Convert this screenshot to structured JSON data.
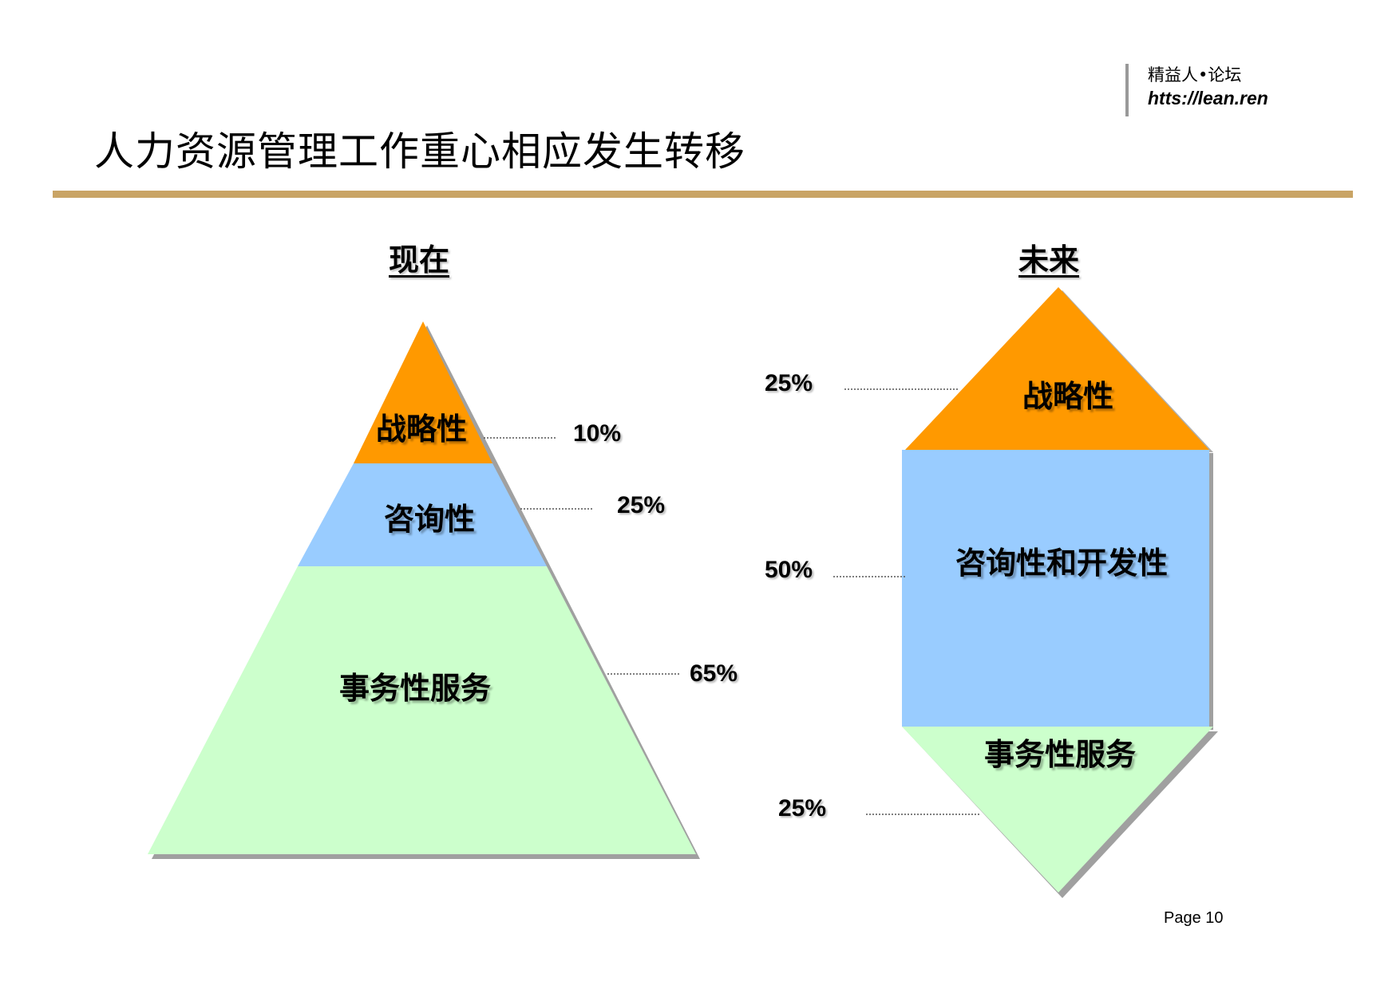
{
  "brand": {
    "name": "精益人•论坛",
    "url": "htts://lean.ren"
  },
  "title": "人力资源管理工作重心相应发生转移",
  "colors": {
    "rule": "#C9A465",
    "strategic": "#FF9900",
    "consulting": "#99CCFF",
    "transactional": "#CCFFCC",
    "shadow": "#A0A0A0",
    "leader": "#555555"
  },
  "now": {
    "heading": "现在",
    "segments": [
      {
        "label": "战略性",
        "percent": "10%"
      },
      {
        "label": "咨询性",
        "percent": "25%"
      },
      {
        "label": "事务性服务",
        "percent": "65%"
      }
    ]
  },
  "future": {
    "heading": "未来",
    "segments": [
      {
        "label": "战略性",
        "percent": "25%"
      },
      {
        "label": "咨询性和开发性",
        "percent": "50%"
      },
      {
        "label": "事务性服务",
        "percent": "25%"
      }
    ]
  },
  "page": "Page 10"
}
